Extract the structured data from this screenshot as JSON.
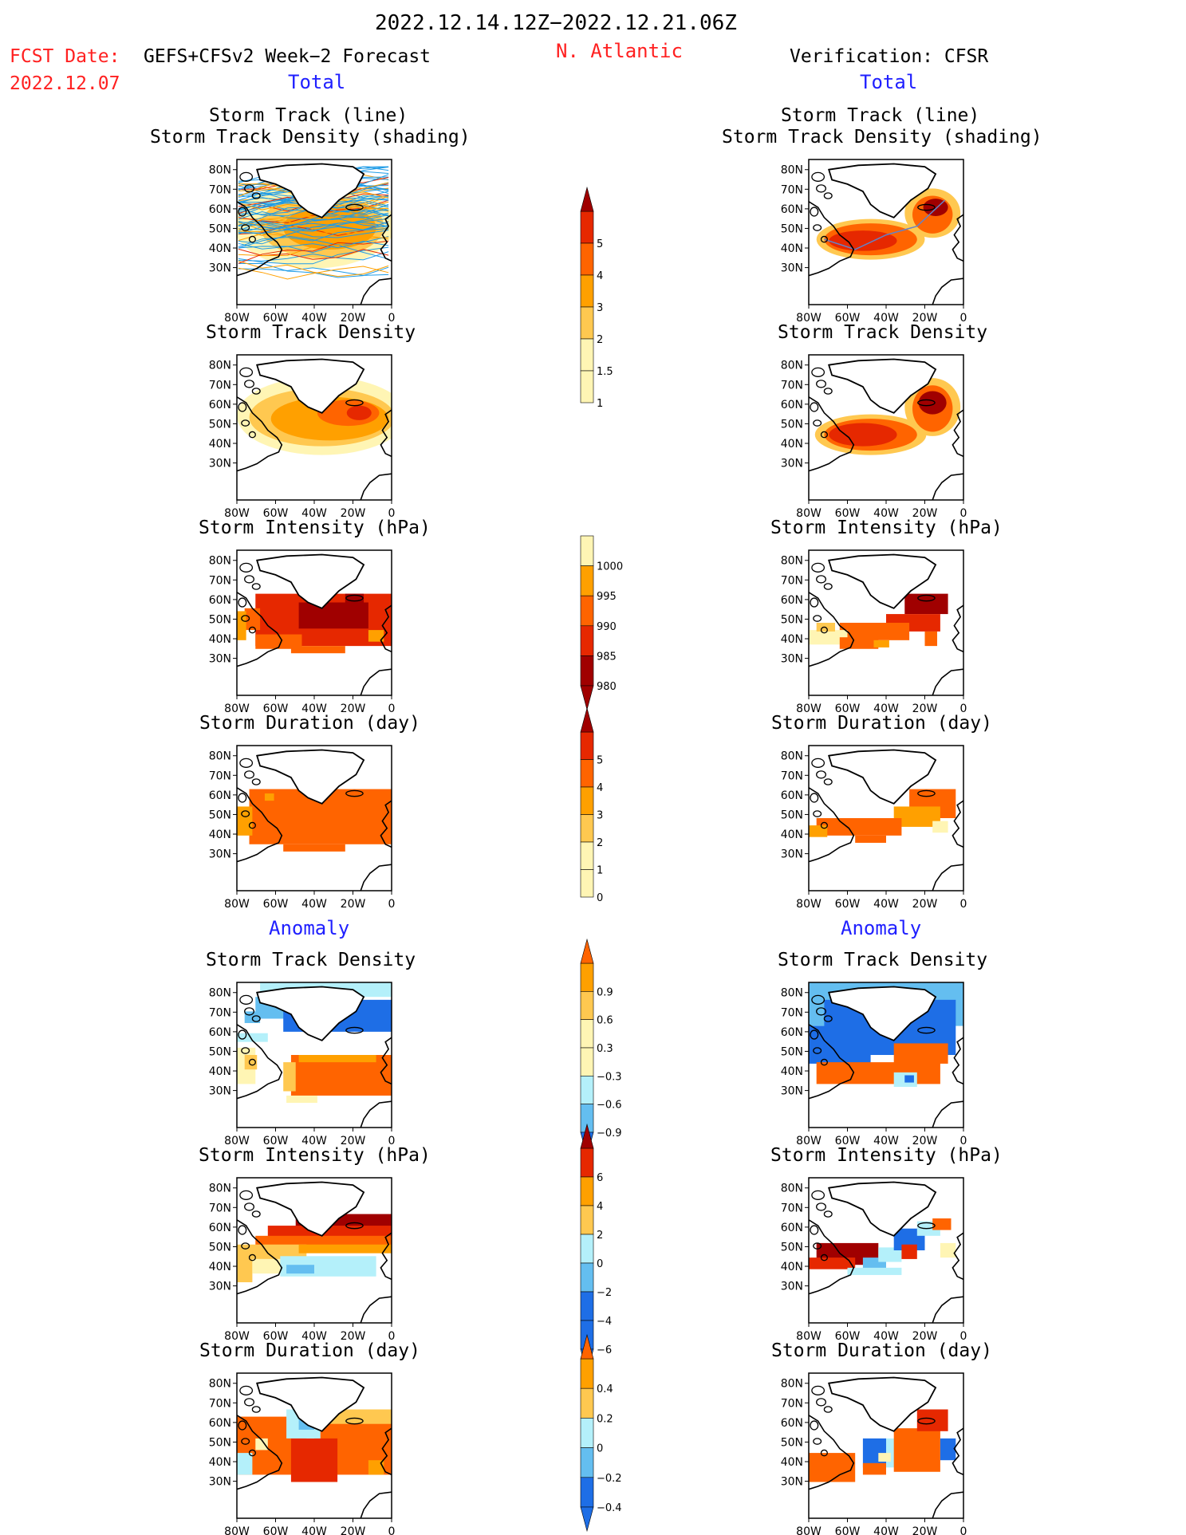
{
  "header": {
    "date_range": "2022.12.14.12Z−2022.12.21.06Z",
    "fcst_label": "FCST Date:",
    "fcst_model": "GEFS+CFSv2 Week−2 Forecast",
    "fcst_date": "2022.12.07",
    "region": "N. Atlantic",
    "verification": "Verification: CFSR"
  },
  "sections": {
    "total": "Total",
    "anomaly": "Anomaly"
  },
  "panel_titles": {
    "track_line": "Storm Track (line)",
    "track_density_shading": "Storm Track Density (shading)",
    "track_density": "Storm Track Density",
    "intensity": "Storm Intensity (hPa)",
    "duration": "Storm Duration (day)"
  },
  "axes": {
    "lat_labels": [
      "80N",
      "70N",
      "60N",
      "50N",
      "40N",
      "30N"
    ],
    "lon_labels": [
      "80W",
      "60W",
      "40W",
      "20W",
      "0"
    ]
  },
  "colorbars": {
    "track_density_total": [
      "5",
      "4",
      "3",
      "2",
      "1.5",
      "1"
    ],
    "intensity_total": [
      "1000",
      "995",
      "990",
      "985",
      "980"
    ],
    "duration_total": [
      "5",
      "4",
      "3",
      "2",
      "1",
      "0"
    ],
    "track_density_anomaly": [
      "0.9",
      "0.6",
      "0.3",
      "−0.3",
      "−0.6",
      "−0.9"
    ],
    "intensity_anomaly": [
      "6",
      "4",
      "2",
      "0",
      "−2",
      "−4",
      "−6"
    ],
    "duration_anomaly": [
      "0.4",
      "0.2",
      "0",
      "−0.2",
      "−0.4"
    ]
  },
  "colors": {
    "title_red": "#ff2020",
    "section_blue": "#2020ff",
    "dark_red": "#a00000",
    "red": "#e62800",
    "orange_red": "#ff6400",
    "orange": "#ffa000",
    "light_orange": "#ffc850",
    "pale_yellow": "#fff5b4",
    "light_blue": "#b4f0fa",
    "mid_blue": "#64bef0",
    "blue": "#1e6ee6",
    "track_blue": "#1e9be6"
  }
}
